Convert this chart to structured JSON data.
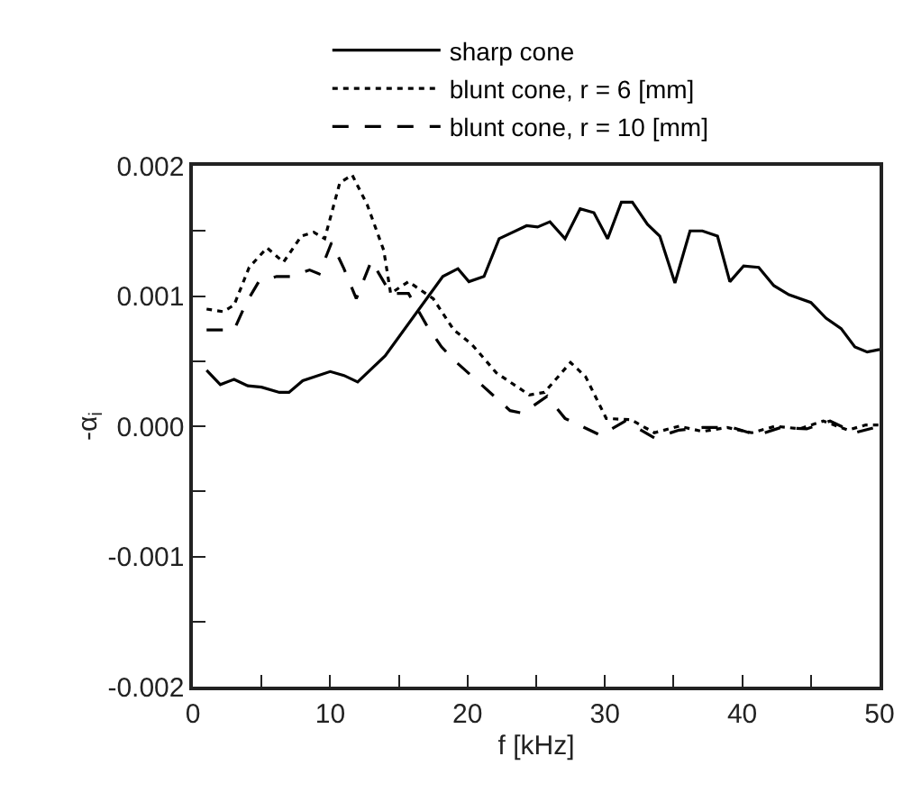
{
  "chart_data": {
    "type": "line",
    "xlabel": "f [kHz]",
    "ylabel": "-α$_{i}$",
    "legend": "top",
    "grid": false,
    "marker": "none",
    "xlim": [
      0,
      50
    ],
    "ylim": [
      -0.002,
      0.002
    ],
    "xticks": [
      0,
      {
        "value": 5,
        "label": null
      },
      10,
      {
        "value": 15,
        "label": null
      },
      20,
      {
        "value": 25,
        "label": null
      },
      30,
      {
        "value": 35,
        "label": null
      },
      40,
      {
        "value": 45,
        "label": null
      },
      50
    ],
    "yticks": [
      "-0.002",
      {
        "value": -0.0015,
        "label": null
      },
      {
        "value": -0.001,
        "label": "-0.001"
      },
      {
        "value": -0.0005,
        "label": null
      },
      {
        "value": 0,
        "label": "0.000"
      },
      {
        "value": 0.0005,
        "label": null
      },
      {
        "value": 0.001,
        "label": "0.001"
      },
      {
        "value": 0.0015,
        "label": null
      },
      {
        "value": 0.002,
        "label": "0.002"
      }
    ],
    "series": [
      {
        "name": "sharp cone",
        "color": "#000000",
        "line_style": "solid",
        "x": [
          1,
          2,
          3,
          4,
          5,
          6.3,
          7,
          8,
          10,
          11,
          12,
          14,
          18.2,
          19.3,
          20.1,
          21.2,
          22.3,
          24.3,
          25.1,
          26,
          27.1,
          28.2,
          29.2,
          30.2,
          31.2,
          32,
          33.1,
          34,
          35.1,
          36.2,
          37.1,
          38.2,
          39.1,
          40.1,
          41.2,
          42.3,
          43.4,
          45,
          46.1,
          47.2,
          48.2,
          49.1,
          50
        ],
        "values": [
          0.00043,
          0.00032,
          0.00036,
          0.00031,
          0.0003,
          0.00026,
          0.00026,
          0.00035,
          0.00042,
          0.00039,
          0.00034,
          0.00054,
          0.00115,
          0.00121,
          0.00111,
          0.00115,
          0.00144,
          0.00154,
          0.00153,
          0.00157,
          0.00144,
          0.00167,
          0.00164,
          0.00144,
          0.00172,
          0.00172,
          0.00155,
          0.00146,
          0.0011,
          0.0015,
          0.0015,
          0.00146,
          0.00111,
          0.00123,
          0.00122,
          0.00108,
          0.00101,
          0.00095,
          0.00083,
          0.00075,
          0.00061,
          0.00057,
          0.00059
        ]
      },
      {
        "name": "blunt cone, r = 6 [mm]",
        "color": "#000000",
        "line_style": "dotted",
        "x": [
          1,
          2.2,
          3,
          4.1,
          5.4,
          6.6,
          7.9,
          8.8,
          9.6,
          10.7,
          11.6,
          12.7,
          13.9,
          14.4,
          15.7,
          17.5,
          19,
          20.3,
          22.1,
          24.5,
          25.6,
          27.5,
          28.6,
          30.1,
          31.9,
          33.6,
          35.4,
          37.1,
          38.9,
          40.7,
          42.4,
          44.2,
          45.9,
          47.7,
          49,
          50
        ],
        "values": [
          0.0009,
          0.00088,
          0.00093,
          0.00122,
          0.00137,
          0.00126,
          0.00146,
          0.00149,
          0.00144,
          0.00187,
          0.00193,
          0.0017,
          0.00135,
          0.00102,
          0.00111,
          0.00098,
          0.00074,
          0.00063,
          0.00041,
          0.00024,
          0.00026,
          0.00049,
          0.00038,
          6e-05,
          5e-05,
          -5e-05,
          0,
          -4e-05,
          -1e-05,
          -5e-05,
          0,
          -2e-05,
          4e-05,
          -3e-05,
          1e-05,
          1e-05
        ]
      },
      {
        "name": "blunt cone, r = 10 [mm]",
        "color": "#000000",
        "line_style": "dashed",
        "x": [
          1,
          3,
          3.9,
          4.8,
          6.1,
          7.2,
          8.5,
          9.2,
          10.1,
          11,
          11.9,
          13,
          14.4,
          15.7,
          17,
          18.1,
          19.1,
          21,
          23.1,
          24,
          25.8,
          27.1,
          29.7,
          31.5,
          33.6,
          35.4,
          37.1,
          39.3,
          41.1,
          42.8,
          44.7,
          46.4,
          48.2,
          50
        ],
        "values": [
          0.00074,
          0.00074,
          0.00095,
          0.00111,
          0.00115,
          0.00115,
          0.0012,
          0.00117,
          0.00141,
          0.00121,
          0.00098,
          0.00127,
          0.00102,
          0.00102,
          0.00078,
          0.00061,
          0.0005,
          0.00032,
          0.00012,
          0.0001,
          0.00023,
          6e-05,
          -7e-05,
          4e-05,
          -9e-05,
          -3e-05,
          -1e-05,
          -1e-05,
          -7e-05,
          -1e-05,
          -2e-05,
          4e-05,
          -5e-05,
          0
        ]
      }
    ]
  }
}
